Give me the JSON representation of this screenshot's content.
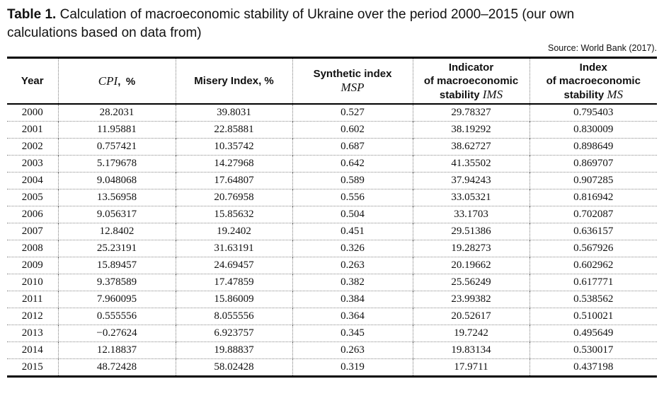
{
  "caption": {
    "label": "Table 1.",
    "text": " Calculation of macroeconomic stability of Ukraine over the period 2000–2015 (our own calculations based on data from)"
  },
  "source": "Source: World Bank (2017).",
  "table": {
    "columns": [
      {
        "id": "year",
        "lines": [
          [
            {
              "text": "Year"
            }
          ]
        ]
      },
      {
        "id": "cpi",
        "lines": [
          [
            {
              "text": "CPI",
              "math": true
            },
            {
              "text": ", %"
            }
          ]
        ]
      },
      {
        "id": "misery-index",
        "lines": [
          [
            {
              "text": "Misery Index, %"
            }
          ]
        ]
      },
      {
        "id": "synthetic-index",
        "lines": [
          [
            {
              "text": "Synthetic index"
            }
          ],
          [
            {
              "text": "MSP",
              "math": true
            }
          ]
        ]
      },
      {
        "id": "indicator-ims",
        "lines": [
          [
            {
              "text": "Indicator"
            }
          ],
          [
            {
              "text": "of macroeconomic"
            }
          ],
          [
            {
              "text": "stability "
            },
            {
              "text": "IMS",
              "math": true
            }
          ]
        ]
      },
      {
        "id": "index-ms",
        "lines": [
          [
            {
              "text": "Index"
            }
          ],
          [
            {
              "text": "of macroeconomic"
            }
          ],
          [
            {
              "text": "stability "
            },
            {
              "text": "MS",
              "math": true
            }
          ]
        ]
      }
    ],
    "rows": [
      [
        "2000",
        "28.2031",
        "39.8031",
        "0.527",
        "29.78327",
        "0.795403"
      ],
      [
        "2001",
        "11.95881",
        "22.85881",
        "0.602",
        "38.19292",
        "0.830009"
      ],
      [
        "2002",
        "0.757421",
        "10.35742",
        "0.687",
        "38.62727",
        "0.898649"
      ],
      [
        "2003",
        "5.179678",
        "14.27968",
        "0.642",
        "41.35502",
        "0.869707"
      ],
      [
        "2004",
        "9.048068",
        "17.64807",
        "0.589",
        "37.94243",
        "0.907285"
      ],
      [
        "2005",
        "13.56958",
        "20.76958",
        "0.556",
        "33.05321",
        "0.816942"
      ],
      [
        "2006",
        "9.056317",
        "15.85632",
        "0.504",
        "33.1703",
        "0.702087"
      ],
      [
        "2007",
        "12.8402",
        "19.2402",
        "0.451",
        "29.51386",
        "0.636157"
      ],
      [
        "2008",
        "25.23191",
        "31.63191",
        "0.326",
        "19.28273",
        "0.567926"
      ],
      [
        "2009",
        "15.89457",
        "24.69457",
        "0.263",
        "20.19662",
        "0.602962"
      ],
      [
        "2010",
        "9.378589",
        "17.47859",
        "0.382",
        "25.56249",
        "0.617771"
      ],
      [
        "2011",
        "7.960095",
        "15.86009",
        "0.384",
        "23.99382",
        "0.538562"
      ],
      [
        "2012",
        "0.555556",
        "8.055556",
        "0.364",
        "20.52617",
        "0.510021"
      ],
      [
        "2013",
        "−0.27624",
        "6.923757",
        "0.345",
        "19.7242",
        "0.495649"
      ],
      [
        "2014",
        "12.18837",
        "19.88837",
        "0.263",
        "19.83134",
        "0.530017"
      ],
      [
        "2015",
        "48.72428",
        "58.02428",
        "0.319",
        "17.9711",
        "0.437198"
      ]
    ]
  }
}
